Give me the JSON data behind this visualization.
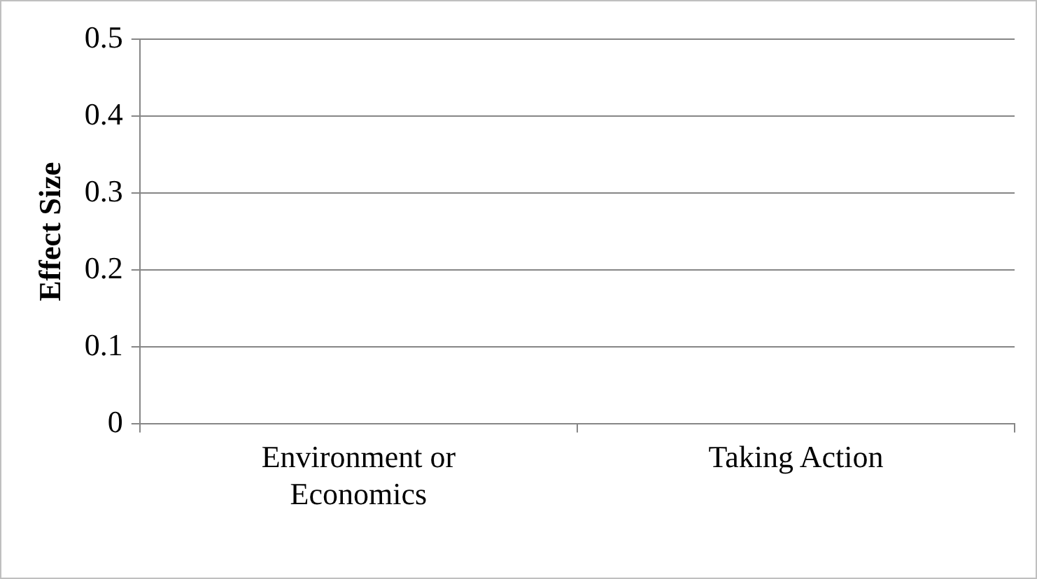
{
  "chart_data": {
    "type": "bar",
    "ylabel": "Effect Size",
    "categories": [
      "Environment or Economics",
      "Taking Action"
    ],
    "values": [
      null,
      null
    ],
    "ylim": [
      0,
      0.5
    ],
    "yticks": [
      0,
      0.1,
      0.2,
      0.3,
      0.4,
      0.5
    ],
    "grid": "y",
    "legend": false
  }
}
